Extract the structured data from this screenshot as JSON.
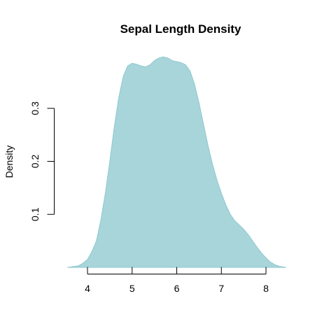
{
  "chart_data": {
    "type": "area",
    "title": "Sepal Length Density",
    "xlabel": "",
    "ylabel": "Density",
    "x_ticks": [
      4,
      5,
      6,
      7,
      8
    ],
    "y_ticks": [
      0.1,
      0.2,
      0.3
    ],
    "xlim": [
      3.5,
      8.7
    ],
    "ylim": [
      0,
      0.41
    ],
    "grid": false,
    "fill_color": "#a8d5da",
    "line_color": "#8ec9cf",
    "series": [
      {
        "x": [
          3.55,
          3.8,
          3.9,
          4.0,
          4.1,
          4.2,
          4.3,
          4.4,
          4.5,
          4.6,
          4.7,
          4.8,
          4.9,
          5.0,
          5.1,
          5.2,
          5.3,
          5.4,
          5.5,
          5.6,
          5.7,
          5.8,
          5.9,
          6.0,
          6.1,
          6.2,
          6.3,
          6.4,
          6.5,
          6.6,
          6.7,
          6.8,
          6.9,
          7.0,
          7.1,
          7.2,
          7.3,
          7.4,
          7.5,
          7.6,
          7.7,
          7.8,
          7.9,
          8.0,
          8.1,
          8.2,
          8.3,
          8.45
        ],
        "y": [
          0.0,
          0.003,
          0.008,
          0.015,
          0.03,
          0.05,
          0.09,
          0.14,
          0.2,
          0.265,
          0.32,
          0.36,
          0.38,
          0.385,
          0.383,
          0.38,
          0.378,
          0.382,
          0.39,
          0.395,
          0.397,
          0.395,
          0.39,
          0.388,
          0.386,
          0.382,
          0.37,
          0.345,
          0.31,
          0.27,
          0.23,
          0.195,
          0.165,
          0.14,
          0.118,
          0.1,
          0.088,
          0.08,
          0.072,
          0.062,
          0.05,
          0.038,
          0.027,
          0.018,
          0.01,
          0.005,
          0.002,
          0.0
        ]
      }
    ]
  }
}
